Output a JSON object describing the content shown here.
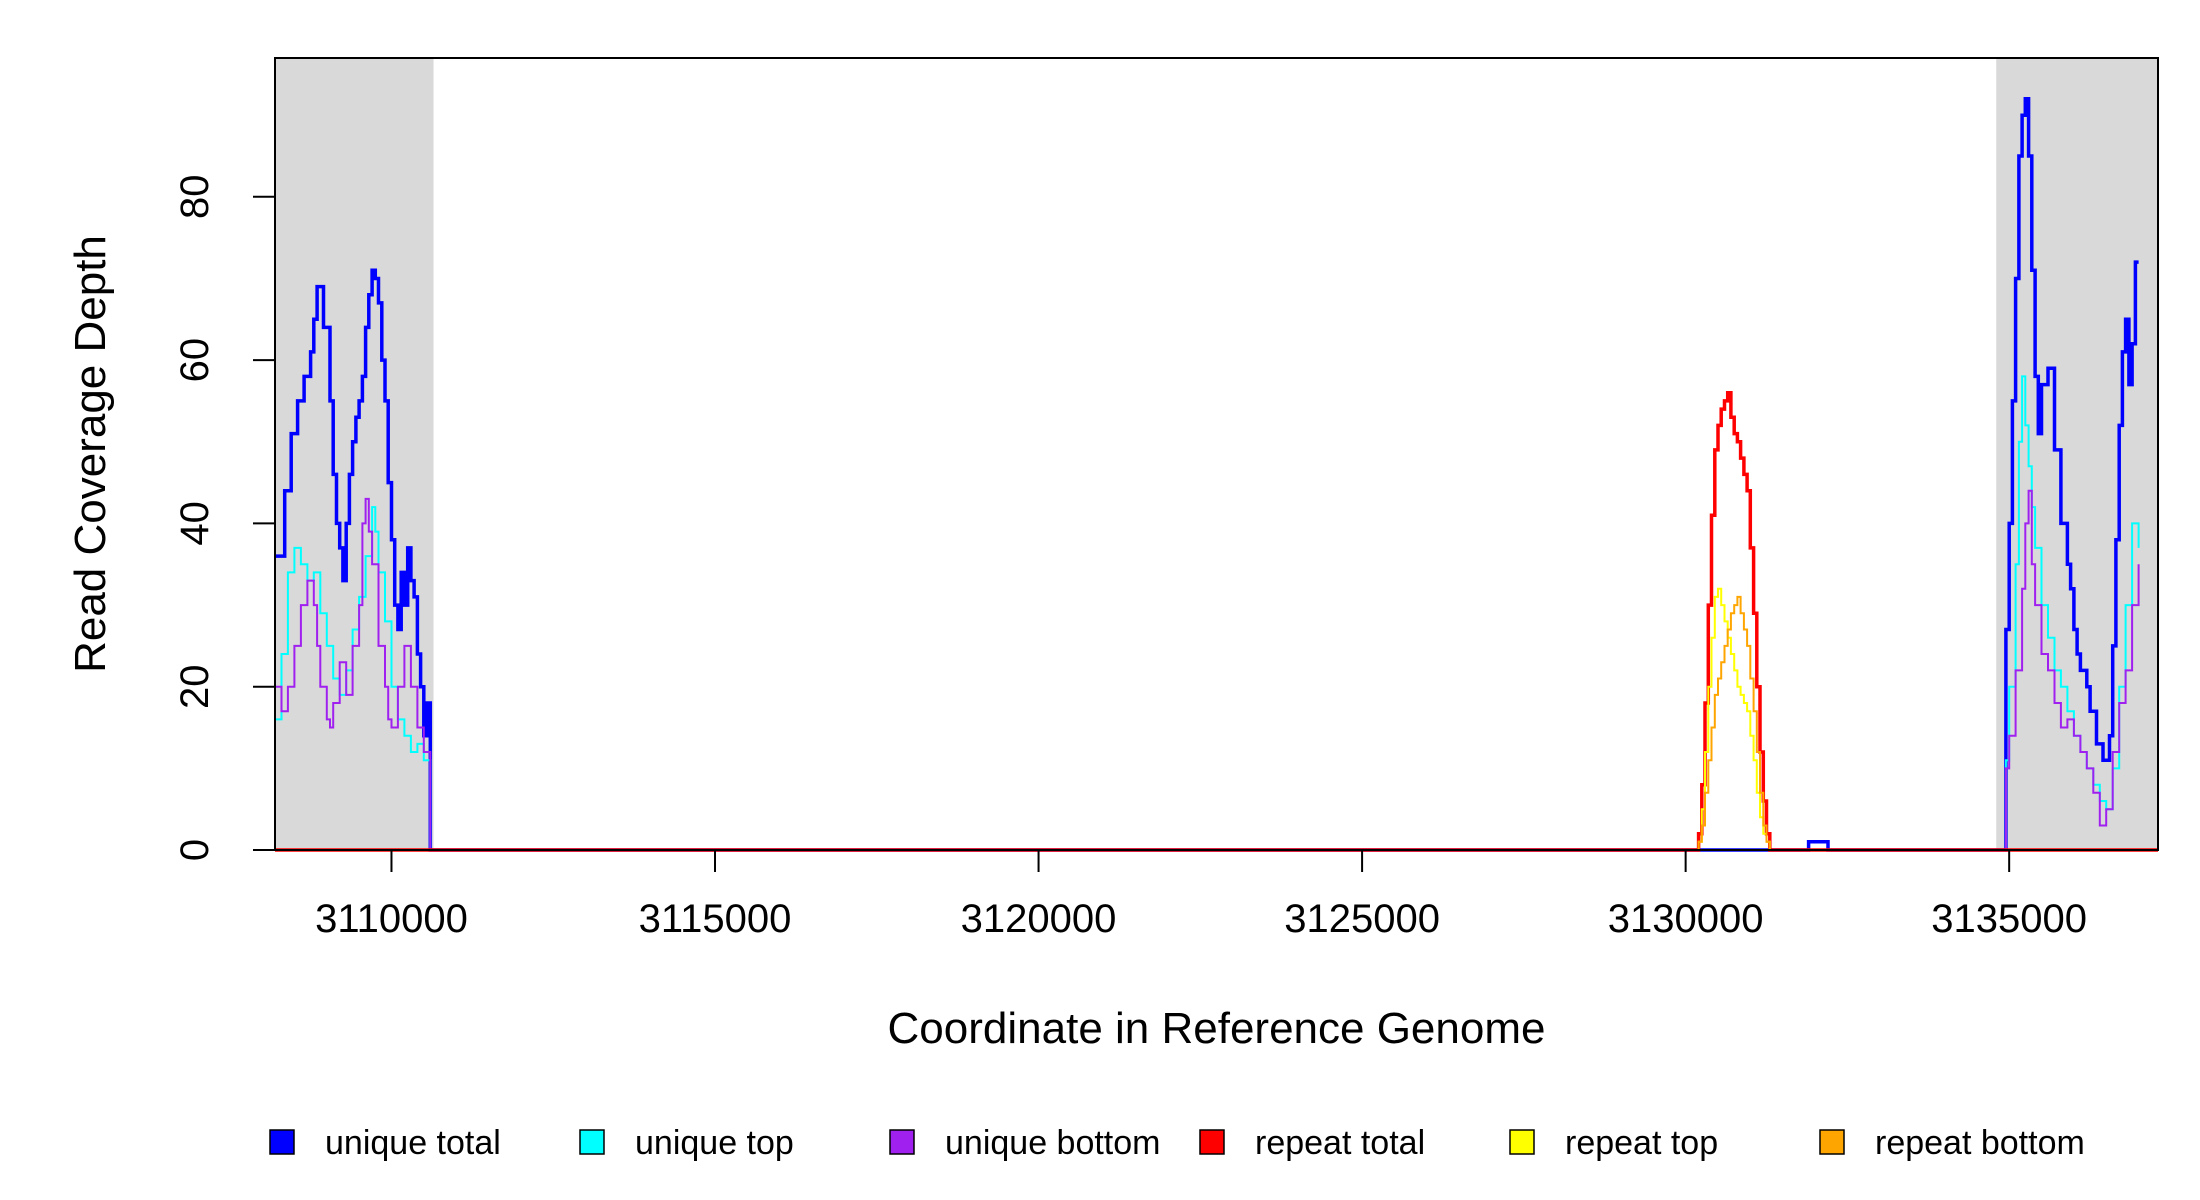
{
  "chart_data": {
    "type": "line",
    "step": true,
    "xlabel": "Coordinate in Reference Genome",
    "ylabel": "Read Coverage Depth",
    "xlim": [
      3108200,
      3137300
    ],
    "ylim": [
      0,
      97
    ],
    "x_ticks": [
      3110000,
      3115000,
      3120000,
      3125000,
      3130000,
      3135000
    ],
    "y_ticks": [
      0,
      20,
      40,
      60,
      80
    ],
    "shaded_regions": [
      {
        "x0": 3108200,
        "x1": 3110650,
        "color": "#d9d9d9"
      },
      {
        "x0": 3134800,
        "x1": 3137300,
        "color": "#d9d9d9"
      }
    ],
    "legend_position": "bottom",
    "series": [
      {
        "name": "unique total",
        "color": "#0000ff",
        "points": [
          [
            3108200,
            36
          ],
          [
            3108350,
            44
          ],
          [
            3108450,
            51
          ],
          [
            3108550,
            55
          ],
          [
            3108650,
            58
          ],
          [
            3108750,
            61
          ],
          [
            3108800,
            65
          ],
          [
            3108850,
            69
          ],
          [
            3108950,
            64
          ],
          [
            3109050,
            55
          ],
          [
            3109100,
            46
          ],
          [
            3109150,
            40
          ],
          [
            3109200,
            37
          ],
          [
            3109250,
            33
          ],
          [
            3109300,
            40
          ],
          [
            3109350,
            46
          ],
          [
            3109400,
            50
          ],
          [
            3109450,
            53
          ],
          [
            3109500,
            55
          ],
          [
            3109550,
            58
          ],
          [
            3109600,
            64
          ],
          [
            3109650,
            68
          ],
          [
            3109700,
            71
          ],
          [
            3109750,
            70
          ],
          [
            3109800,
            67
          ],
          [
            3109850,
            60
          ],
          [
            3109900,
            55
          ],
          [
            3109950,
            45
          ],
          [
            3110000,
            38
          ],
          [
            3110050,
            30
          ],
          [
            3110100,
            27
          ],
          [
            3110150,
            34
          ],
          [
            3110200,
            30
          ],
          [
            3110250,
            37
          ],
          [
            3110300,
            33
          ],
          [
            3110350,
            31
          ],
          [
            3110400,
            24
          ],
          [
            3110450,
            20
          ],
          [
            3110500,
            14
          ],
          [
            3110550,
            18
          ],
          [
            3110600,
            0
          ],
          [
            3131800,
            0
          ],
          [
            3131900,
            1
          ],
          [
            3132100,
            1
          ],
          [
            3132200,
            0
          ],
          [
            3134900,
            0
          ],
          [
            3134950,
            27
          ],
          [
            3135000,
            40
          ],
          [
            3135050,
            55
          ],
          [
            3135100,
            70
          ],
          [
            3135150,
            85
          ],
          [
            3135200,
            90
          ],
          [
            3135250,
            92
          ],
          [
            3135300,
            85
          ],
          [
            3135350,
            71
          ],
          [
            3135400,
            58
          ],
          [
            3135450,
            51
          ],
          [
            3135500,
            57
          ],
          [
            3135600,
            59
          ],
          [
            3135700,
            49
          ],
          [
            3135800,
            40
          ],
          [
            3135900,
            35
          ],
          [
            3135950,
            32
          ],
          [
            3136000,
            27
          ],
          [
            3136050,
            24
          ],
          [
            3136100,
            22
          ],
          [
            3136200,
            20
          ],
          [
            3136250,
            17
          ],
          [
            3136350,
            13
          ],
          [
            3136450,
            11
          ],
          [
            3136550,
            14
          ],
          [
            3136600,
            25
          ],
          [
            3136650,
            38
          ],
          [
            3136700,
            52
          ],
          [
            3136750,
            61
          ],
          [
            3136800,
            65
          ],
          [
            3136850,
            57
          ],
          [
            3136900,
            62
          ],
          [
            3136950,
            72
          ],
          [
            3137000,
            72
          ]
        ]
      },
      {
        "name": "unique top",
        "color": "#00ffff",
        "points": [
          [
            3108200,
            16
          ],
          [
            3108300,
            24
          ],
          [
            3108400,
            34
          ],
          [
            3108500,
            37
          ],
          [
            3108600,
            35
          ],
          [
            3108700,
            33
          ],
          [
            3108800,
            34
          ],
          [
            3108900,
            29
          ],
          [
            3109000,
            25
          ],
          [
            3109100,
            21
          ],
          [
            3109200,
            19
          ],
          [
            3109300,
            22
          ],
          [
            3109400,
            27
          ],
          [
            3109500,
            31
          ],
          [
            3109600,
            36
          ],
          [
            3109700,
            42
          ],
          [
            3109750,
            39
          ],
          [
            3109800,
            34
          ],
          [
            3109900,
            28
          ],
          [
            3110000,
            20
          ],
          [
            3110100,
            16
          ],
          [
            3110200,
            14
          ],
          [
            3110300,
            12
          ],
          [
            3110400,
            13
          ],
          [
            3110500,
            11
          ],
          [
            3110600,
            0
          ],
          [
            3134900,
            0
          ],
          [
            3134950,
            11
          ],
          [
            3135000,
            20
          ],
          [
            3135100,
            35
          ],
          [
            3135150,
            50
          ],
          [
            3135200,
            58
          ],
          [
            3135250,
            52
          ],
          [
            3135300,
            47
          ],
          [
            3135350,
            42
          ],
          [
            3135400,
            37
          ],
          [
            3135500,
            30
          ],
          [
            3135600,
            26
          ],
          [
            3135700,
            22
          ],
          [
            3135800,
            20
          ],
          [
            3135900,
            17
          ],
          [
            3136000,
            14
          ],
          [
            3136100,
            12
          ],
          [
            3136200,
            10
          ],
          [
            3136300,
            8
          ],
          [
            3136400,
            6
          ],
          [
            3136500,
            5
          ],
          [
            3136600,
            10
          ],
          [
            3136700,
            20
          ],
          [
            3136800,
            30
          ],
          [
            3136900,
            40
          ],
          [
            3137000,
            37
          ]
        ]
      },
      {
        "name": "unique bottom",
        "color": "#a020f0",
        "points": [
          [
            3108200,
            20
          ],
          [
            3108300,
            17
          ],
          [
            3108400,
            20
          ],
          [
            3108500,
            25
          ],
          [
            3108600,
            30
          ],
          [
            3108700,
            33
          ],
          [
            3108800,
            30
          ],
          [
            3108850,
            25
          ],
          [
            3108900,
            20
          ],
          [
            3109000,
            16
          ],
          [
            3109050,
            15
          ],
          [
            3109100,
            18
          ],
          [
            3109200,
            23
          ],
          [
            3109300,
            19
          ],
          [
            3109400,
            25
          ],
          [
            3109500,
            30
          ],
          [
            3109550,
            40
          ],
          [
            3109600,
            43
          ],
          [
            3109650,
            39
          ],
          [
            3109700,
            35
          ],
          [
            3109800,
            25
          ],
          [
            3109900,
            20
          ],
          [
            3109950,
            16
          ],
          [
            3110000,
            15
          ],
          [
            3110100,
            20
          ],
          [
            3110200,
            25
          ],
          [
            3110300,
            20
          ],
          [
            3110400,
            15
          ],
          [
            3110500,
            12
          ],
          [
            3110600,
            0
          ],
          [
            3134900,
            0
          ],
          [
            3134950,
            10
          ],
          [
            3135000,
            14
          ],
          [
            3135100,
            22
          ],
          [
            3135200,
            32
          ],
          [
            3135250,
            40
          ],
          [
            3135300,
            44
          ],
          [
            3135350,
            35
          ],
          [
            3135400,
            30
          ],
          [
            3135500,
            24
          ],
          [
            3135600,
            22
          ],
          [
            3135700,
            18
          ],
          [
            3135800,
            15
          ],
          [
            3135900,
            16
          ],
          [
            3136000,
            14
          ],
          [
            3136100,
            12
          ],
          [
            3136200,
            10
          ],
          [
            3136300,
            7
          ],
          [
            3136400,
            3
          ],
          [
            3136500,
            5
          ],
          [
            3136600,
            12
          ],
          [
            3136700,
            18
          ],
          [
            3136800,
            22
          ],
          [
            3136900,
            30
          ],
          [
            3137000,
            35
          ]
        ]
      },
      {
        "name": "repeat total",
        "color": "#ff0000",
        "points": [
          [
            3108200,
            0
          ],
          [
            3130150,
            0
          ],
          [
            3130200,
            2
          ],
          [
            3130250,
            8
          ],
          [
            3130300,
            18
          ],
          [
            3130350,
            30
          ],
          [
            3130400,
            41
          ],
          [
            3130450,
            49
          ],
          [
            3130500,
            52
          ],
          [
            3130550,
            54
          ],
          [
            3130600,
            55
          ],
          [
            3130650,
            56
          ],
          [
            3130700,
            53
          ],
          [
            3130750,
            51
          ],
          [
            3130800,
            50
          ],
          [
            3130850,
            48
          ],
          [
            3130900,
            46
          ],
          [
            3130950,
            44
          ],
          [
            3131000,
            37
          ],
          [
            3131050,
            29
          ],
          [
            3131100,
            20
          ],
          [
            3131150,
            12
          ],
          [
            3131200,
            6
          ],
          [
            3131250,
            2
          ],
          [
            3131300,
            0
          ],
          [
            3137300,
            0
          ]
        ]
      },
      {
        "name": "repeat top",
        "color": "#ffff00",
        "points": [
          [
            3108200,
            0
          ],
          [
            3130150,
            0
          ],
          [
            3130200,
            1
          ],
          [
            3130250,
            5
          ],
          [
            3130300,
            12
          ],
          [
            3130350,
            20
          ],
          [
            3130400,
            26
          ],
          [
            3130450,
            31
          ],
          [
            3130500,
            32
          ],
          [
            3130550,
            30
          ],
          [
            3130600,
            28
          ],
          [
            3130650,
            26
          ],
          [
            3130700,
            24
          ],
          [
            3130750,
            22
          ],
          [
            3130800,
            20
          ],
          [
            3130850,
            19
          ],
          [
            3130900,
            18
          ],
          [
            3130950,
            17
          ],
          [
            3131000,
            14
          ],
          [
            3131050,
            11
          ],
          [
            3131100,
            7
          ],
          [
            3131150,
            4
          ],
          [
            3131200,
            2
          ],
          [
            3131250,
            1
          ],
          [
            3131300,
            0
          ],
          [
            3137300,
            0
          ]
        ]
      },
      {
        "name": "repeat bottom",
        "color": "#ffa500",
        "points": [
          [
            3108200,
            0
          ],
          [
            3130150,
            0
          ],
          [
            3130200,
            1
          ],
          [
            3130250,
            3
          ],
          [
            3130300,
            7
          ],
          [
            3130350,
            11
          ],
          [
            3130400,
            15
          ],
          [
            3130450,
            19
          ],
          [
            3130500,
            21
          ],
          [
            3130550,
            23
          ],
          [
            3130600,
            25
          ],
          [
            3130650,
            27
          ],
          [
            3130700,
            29
          ],
          [
            3130750,
            30
          ],
          [
            3130800,
            31
          ],
          [
            3130850,
            29
          ],
          [
            3130900,
            27
          ],
          [
            3130950,
            25
          ],
          [
            3131000,
            21
          ],
          [
            3131050,
            17
          ],
          [
            3131100,
            12
          ],
          [
            3131150,
            7
          ],
          [
            3131200,
            3
          ],
          [
            3131250,
            1
          ],
          [
            3131300,
            0
          ],
          [
            3137300,
            0
          ]
        ]
      }
    ]
  }
}
